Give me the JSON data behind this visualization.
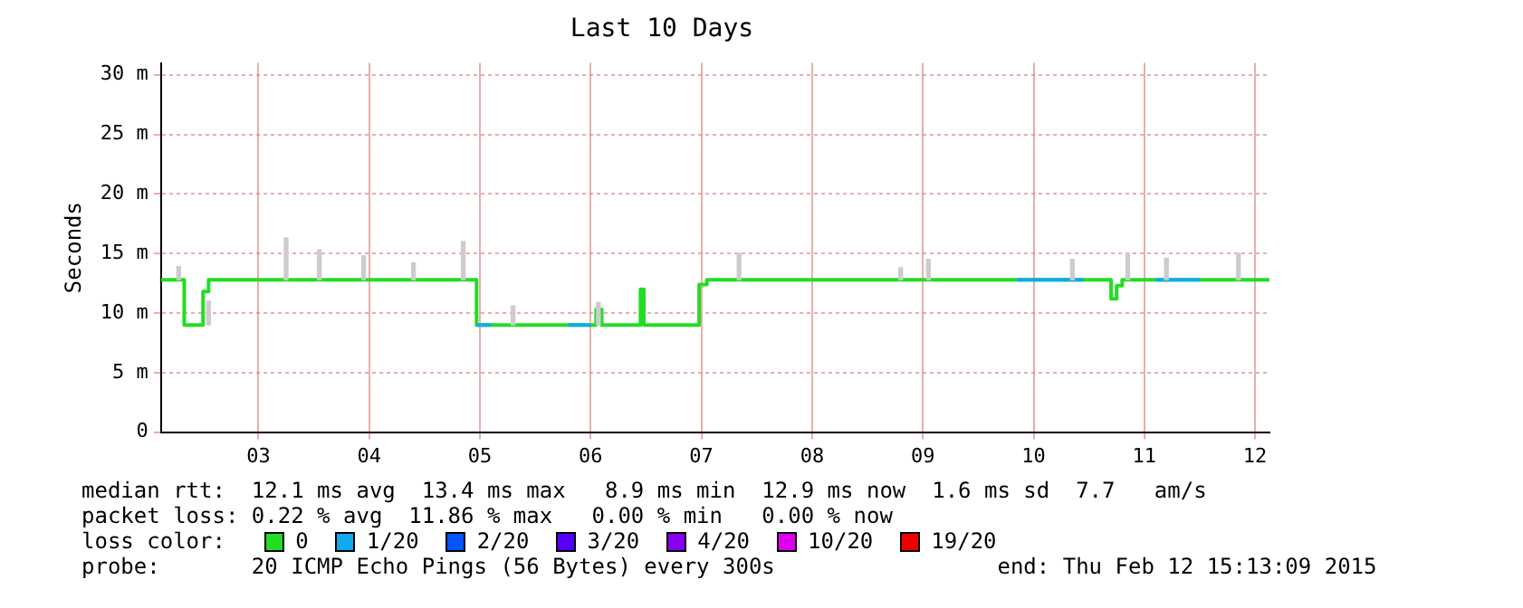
{
  "chart_data": {
    "type": "step",
    "title": "Last 10 Days",
    "ylabel": "Seconds",
    "legend_title": "loss color:",
    "legend": "bottom",
    "grid": true,
    "xlim": [
      2.12,
      12.13
    ],
    "xticks": [
      {
        "value": 3,
        "label": "03"
      },
      {
        "value": 4,
        "label": "04"
      },
      {
        "value": 5,
        "label": "05"
      },
      {
        "value": 6,
        "label": "06"
      },
      {
        "value": 7,
        "label": "07"
      },
      {
        "value": 8,
        "label": "08"
      },
      {
        "value": 9,
        "label": "09"
      },
      {
        "value": 10,
        "label": "10"
      },
      {
        "value": 11,
        "label": "11"
      },
      {
        "value": 12,
        "label": "12"
      }
    ],
    "ylim": [
      0,
      31
    ],
    "yticks": [
      0,
      {
        "value": 5,
        "label": "5 m"
      },
      {
        "value": 10,
        "label": "10 m"
      },
      {
        "value": 15,
        "label": "15 m"
      },
      {
        "value": 20,
        "label": "20 m"
      },
      {
        "value": 25,
        "label": "25 m"
      },
      {
        "value": 30,
        "label": "30 m"
      }
    ],
    "series": [
      {
        "type": "bar",
        "color": "#cccccc",
        "x": [
          2.28,
          2.55,
          3.25,
          3.55,
          3.95,
          4.4,
          4.85,
          5.3,
          6.07,
          7.34,
          8.8,
          9.05,
          10.35,
          10.85,
          11.2,
          11.85
        ],
        "base": [
          12.8,
          9,
          12.8,
          12.8,
          12.8,
          12.8,
          12.8,
          9,
          9,
          12.8,
          12.8,
          12.8,
          12.8,
          12.8,
          12.8,
          12.8
        ],
        "values": [
          1.1,
          2,
          3.5,
          2.5,
          2,
          1.4,
          3.2,
          1.6,
          1.9,
          2.2,
          1,
          1.7,
          1.7,
          2.2,
          1.8,
          2.2
        ]
      },
      {
        "name": "0",
        "color": "#22dd22",
        "x": [
          2.12,
          2.33,
          2.5,
          2.55,
          4.97,
          6.05,
          6.1,
          6.45,
          6.48,
          6.98,
          7.05,
          10.7,
          10.75,
          10.8,
          12.13
        ],
        "values": [
          12.8,
          9,
          11.8,
          12.8,
          9,
          10.3,
          9,
          12,
          9,
          12.4,
          12.8,
          11.2,
          12.3,
          12.8,
          12.8
        ]
      },
      {
        "name": "1/20",
        "color": "#11aaee",
        "x": [
          4.97,
          5.1,
          5.11,
          5.8,
          6.0,
          6.01,
          9.85,
          10.45,
          10.46,
          11.1,
          11.5
        ],
        "values": [
          9,
          9,
          null,
          9,
          9,
          null,
          12.8,
          12.8,
          null,
          12.8,
          12.8
        ]
      },
      {
        "name": "2/20",
        "color": "#0055ff"
      },
      {
        "name": "3/20",
        "color": "#5500ff"
      },
      {
        "name": "4/20",
        "color": "#8800ee"
      },
      {
        "name": "10/20",
        "color": "#dd00ee"
      },
      {
        "name": "19/20",
        "color": "#ee0000"
      }
    ],
    "annotations": [
      "median rtt:  12.1 ms avg  13.4 ms max   8.9 ms min  12.9 ms now  1.6 ms sd  7.7   am/s",
      "packet loss: 0.22 % avg  11.86 % max   0.00 % min   0.00 % now",
      "probe:       20 ICMP Echo Pings (56 Bytes) every 300s                 end: Thu Feb 12 15:13:09 2015"
    ]
  }
}
